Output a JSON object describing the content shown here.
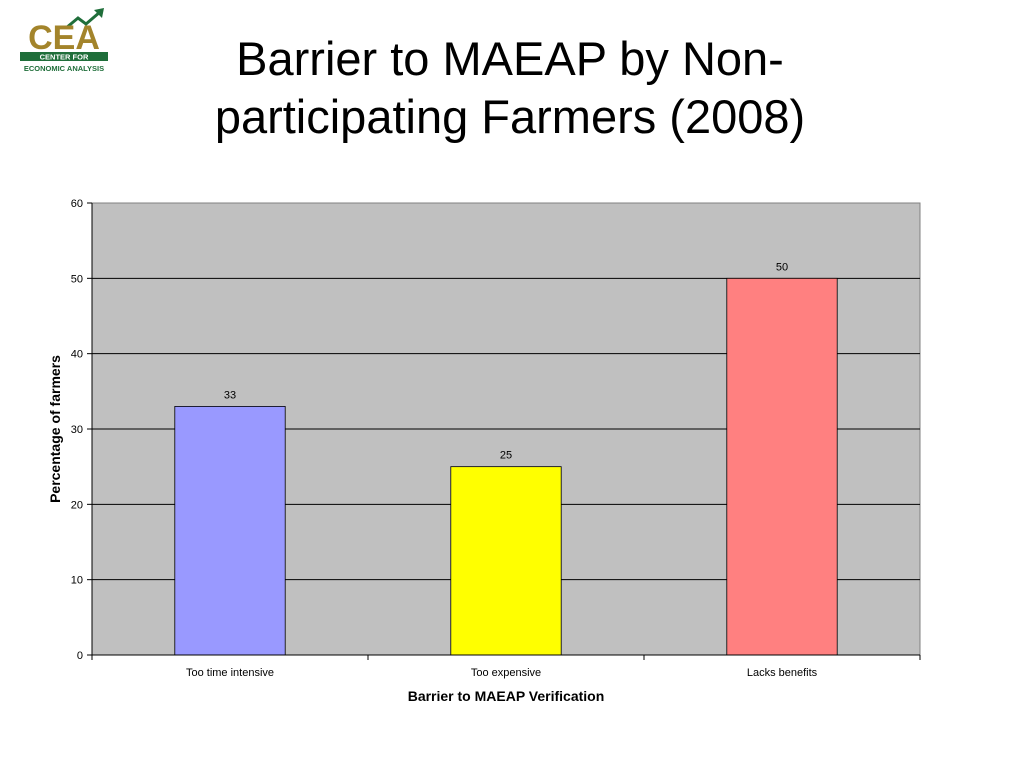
{
  "slide": {
    "title": "Barrier to MAEAP by Non-participating Farmers (2008)"
  },
  "logo": {
    "text": "CEA",
    "subtitle_line1": "CENTER FOR",
    "subtitle_line2": "ECONOMIC ANALYSIS",
    "colors": {
      "text": "#a3842b",
      "band": "#1f6e3a",
      "arrow": "#1f6e3a"
    }
  },
  "chart_data": {
    "type": "bar",
    "categories": [
      "Too time intensive",
      "Too expensive",
      "Lacks benefits"
    ],
    "values": [
      33,
      25,
      50
    ],
    "data_labels": [
      "33",
      "25",
      "50"
    ],
    "bar_colors": [
      "#9999ff",
      "#ffff00",
      "#ff8080"
    ],
    "xlabel": "Barrier to MAEAP Verification",
    "ylabel": "Percentage of farmers",
    "ylim": [
      0,
      60
    ],
    "yticks": [
      0,
      10,
      20,
      30,
      40,
      50,
      60
    ],
    "grid": true,
    "plot_background": "#c0c0c0",
    "legend": "none"
  }
}
